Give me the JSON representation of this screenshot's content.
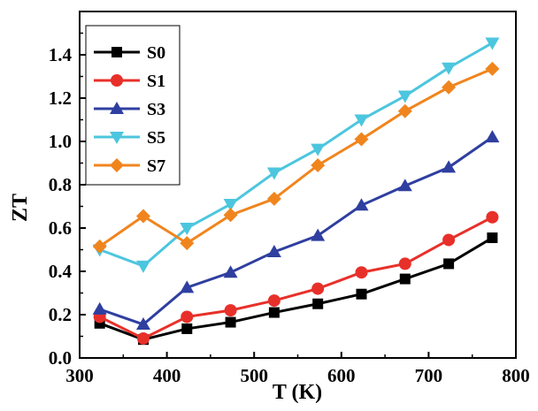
{
  "chart_data": {
    "type": "line",
    "xlabel": "T (K)",
    "ylabel": "ZT",
    "xlim": [
      300,
      800
    ],
    "ylim": [
      0.0,
      1.6
    ],
    "xticks": [
      "300",
      "400",
      "500",
      "600",
      "700",
      "800"
    ],
    "yticks": [
      "0.0",
      "0.2",
      "0.4",
      "0.6",
      "0.8",
      "1.0",
      "1.2",
      "1.4"
    ],
    "grid": false,
    "legend_position": "top-left",
    "x": [
      323,
      373,
      423,
      473,
      523,
      573,
      623,
      673,
      723,
      773
    ],
    "series": [
      {
        "name": "S0",
        "color": "#000000",
        "marker": "square",
        "values": [
          0.16,
          0.085,
          0.135,
          0.165,
          0.21,
          0.25,
          0.295,
          0.365,
          0.435,
          0.555
        ]
      },
      {
        "name": "S1",
        "color": "#e8302a",
        "marker": "circle",
        "values": [
          0.19,
          0.09,
          0.19,
          0.22,
          0.265,
          0.32,
          0.395,
          0.435,
          0.545,
          0.65
        ]
      },
      {
        "name": "S3",
        "color": "#2f3fa0",
        "marker": "triangle-up",
        "values": [
          0.225,
          0.155,
          0.325,
          0.395,
          0.49,
          0.565,
          0.705,
          0.795,
          0.88,
          1.02
        ]
      },
      {
        "name": "S5",
        "color": "#4cc6de",
        "marker": "triangle-down",
        "values": [
          0.5,
          0.425,
          0.6,
          0.71,
          0.855,
          0.965,
          1.1,
          1.21,
          1.34,
          1.455
        ]
      },
      {
        "name": "S7",
        "color": "#f0851e",
        "marker": "diamond",
        "values": [
          0.515,
          0.655,
          0.53,
          0.66,
          0.735,
          0.89,
          1.01,
          1.14,
          1.25,
          1.335
        ]
      }
    ]
  }
}
